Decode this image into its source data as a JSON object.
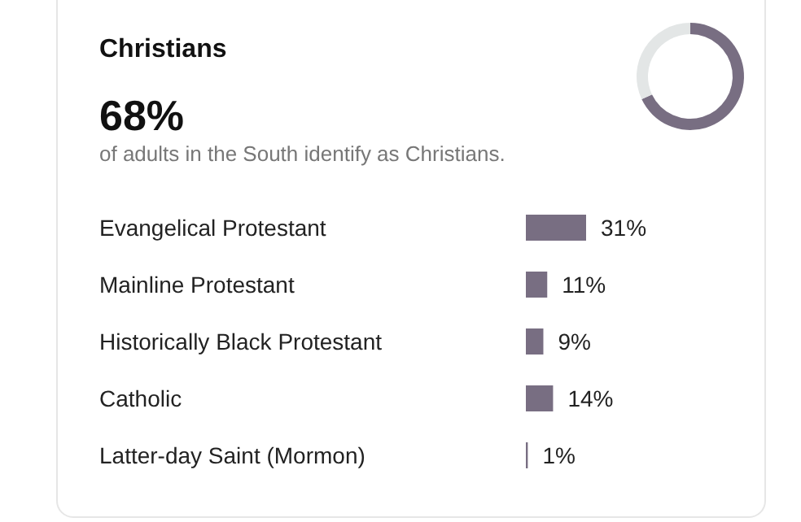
{
  "chart_data": [
    {
      "type": "donut",
      "subtitle": "of adults in the South identify as Christians.",
      "categories": [
        null,
        null
      ],
      "values": [
        68,
        32
      ],
      "colors": [
        "#786e82",
        "#e3e6e6"
      ],
      "annotations": [
        "68%"
      ]
    },
    {
      "type": "bar",
      "title": "Christians",
      "orientation": "horizontal",
      "categories": [
        "Evangelical Protestant",
        "Mainline Protestant",
        "Historically Black Protestant",
        "Catholic",
        "Latter-day Saint (Mormon)"
      ],
      "values": [
        31,
        11,
        9,
        14,
        1
      ],
      "color": "#786e82",
      "value_labels": [
        "31%",
        "11%",
        "9%",
        "14%",
        "1%"
      ]
    }
  ]
}
